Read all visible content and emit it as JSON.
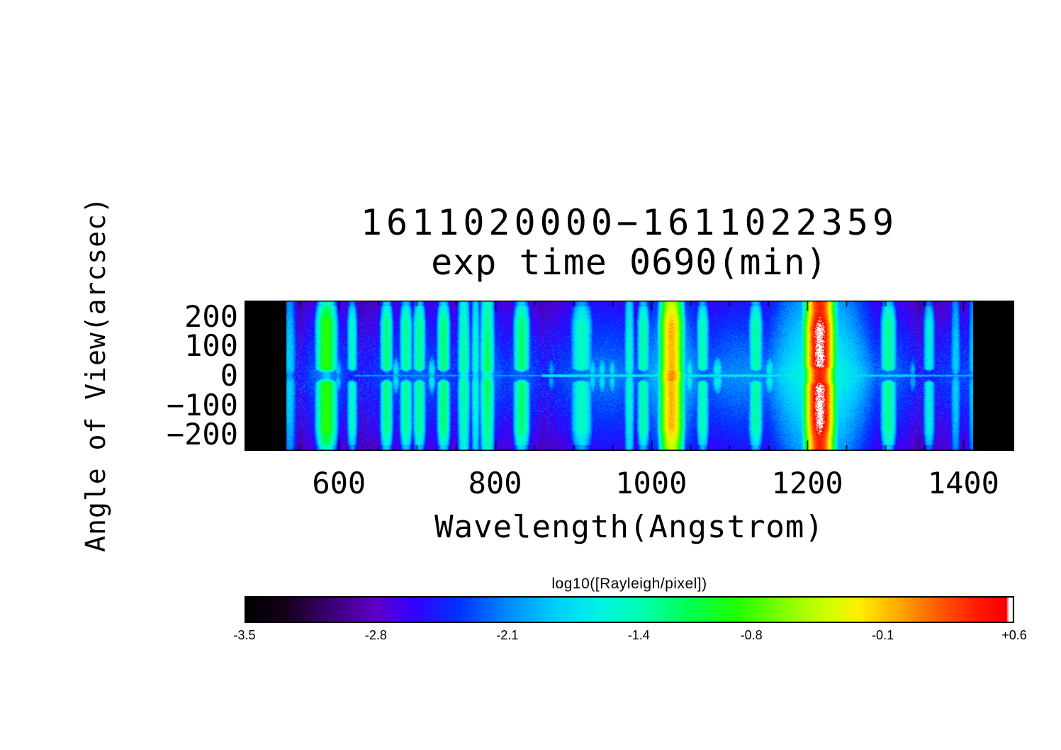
{
  "colors": {
    "background": "#ffffff",
    "text": "#000000",
    "axis": "#000000"
  },
  "chart_data": {
    "type": "heatmap",
    "title": "1611020000−1611022359",
    "subtitle": "exp time 0690(min)",
    "xlabel": "Wavelength(Angstrom)",
    "ylabel": "Angle of View(arcsec)",
    "xlim": [
      479,
      1465
    ],
    "ylim": [
      -255,
      255
    ],
    "x_ticks": {
      "values": [
        600,
        800,
        1000,
        1200,
        1400
      ],
      "labels": [
        "600",
        "800",
        "1000",
        "1200",
        "1400"
      ],
      "minor_step": 50
    },
    "y_ticks": {
      "values": [
        200,
        100,
        0,
        -100,
        -200
      ],
      "labels": [
        "200",
        "100",
        "0",
        "−100",
        "−200"
      ],
      "minor_step": 25
    },
    "colorbar": {
      "label": "log10([Rayleigh/pixel])",
      "range": [
        -3.5,
        0.6
      ],
      "tick_values": [
        -3.5,
        -2.8,
        -2.1,
        -1.4,
        -0.8,
        -0.1,
        0.6
      ],
      "tick_labels": [
        "-3.5",
        "-2.8",
        "-2.1",
        "-1.4",
        "-0.8",
        "-0.1",
        "+0.6"
      ],
      "colormap_stops": [
        [
          0.0,
          "#000000"
        ],
        [
          0.055,
          "#16001e"
        ],
        [
          0.11,
          "#3a0070"
        ],
        [
          0.17,
          "#5f00c8"
        ],
        [
          0.22,
          "#3300ff"
        ],
        [
          0.28,
          "#0033ff"
        ],
        [
          0.34,
          "#0088ff"
        ],
        [
          0.4,
          "#00ccff"
        ],
        [
          0.46,
          "#00f2e4"
        ],
        [
          0.52,
          "#00ffab"
        ],
        [
          0.58,
          "#00ff4d"
        ],
        [
          0.64,
          "#1fff00"
        ],
        [
          0.7,
          "#80ff00"
        ],
        [
          0.76,
          "#d4ff00"
        ],
        [
          0.8,
          "#ffee00"
        ],
        [
          0.85,
          "#ffaa00"
        ],
        [
          0.9,
          "#ff5e00"
        ],
        [
          0.95,
          "#ff1e00"
        ],
        [
          0.99,
          "#f30000"
        ],
        [
          0.994,
          "#ffffff"
        ],
        [
          1.0,
          "#ffffff"
        ]
      ]
    },
    "data_region_angstrom": [
      533,
      1412
    ],
    "background_log10_rayleigh": -2.55,
    "noise_log10": 0.4,
    "emission_lines": [
      {
        "wavelength": 537,
        "sigma": 5,
        "peak": -1.8,
        "profile": "full"
      },
      {
        "wavelength": 584,
        "sigma": 6,
        "peak": -0.85,
        "profile": "split"
      },
      {
        "wavelength": 599,
        "sigma": 3,
        "peak": -1.75,
        "profile": "short"
      },
      {
        "wavelength": 617,
        "sigma": 3.5,
        "peak": -1.5,
        "profile": "split"
      },
      {
        "wavelength": 661,
        "sigma": 4,
        "peak": -1.25,
        "profile": "split"
      },
      {
        "wavelength": 673,
        "sigma": 3,
        "peak": -1.6,
        "profile": "short"
      },
      {
        "wavelength": 686,
        "sigma": 4,
        "peak": -1.3,
        "profile": "split"
      },
      {
        "wavelength": 703,
        "sigma": 4,
        "peak": -1.3,
        "profile": "split"
      },
      {
        "wavelength": 719,
        "sigma": 3,
        "peak": -1.55,
        "profile": "short"
      },
      {
        "wavelength": 734,
        "sigma": 4,
        "peak": -1.2,
        "profile": "split"
      },
      {
        "wavelength": 760,
        "sigma": 4,
        "peak": -1.3,
        "profile": "full"
      },
      {
        "wavelength": 775,
        "sigma": 3,
        "peak": -1.5,
        "profile": "full"
      },
      {
        "wavelength": 790,
        "sigma": 4.5,
        "peak": -1.15,
        "profile": "full"
      },
      {
        "wavelength": 834,
        "sigma": 5,
        "peak": -1.2,
        "profile": "split"
      },
      {
        "wavelength": 872,
        "sigma": 3,
        "peak": -1.9,
        "profile": "short"
      },
      {
        "wavelength": 911,
        "sigma": 7,
        "peak": -1.45,
        "profile": "split"
      },
      {
        "wavelength": 925,
        "sigma": 3,
        "peak": -1.65,
        "profile": "short"
      },
      {
        "wavelength": 937,
        "sigma": 3,
        "peak": -1.6,
        "profile": "short"
      },
      {
        "wavelength": 950,
        "sigma": 3,
        "peak": -1.65,
        "profile": "short"
      },
      {
        "wavelength": 972,
        "sigma": 3.5,
        "peak": -1.5,
        "profile": "full"
      },
      {
        "wavelength": 990,
        "sigma": 4,
        "peak": -1.35,
        "profile": "split"
      },
      {
        "wavelength": 1026,
        "sigma": 6,
        "peak": -0.05,
        "profile": "lyman-beta"
      },
      {
        "wavelength": 1049,
        "sigma": 3,
        "peak": -1.5,
        "profile": "short"
      },
      {
        "wavelength": 1066,
        "sigma": 4,
        "peak": -1.4,
        "profile": "split"
      },
      {
        "wavelength": 1085,
        "sigma": 4,
        "peak": -1.5,
        "profile": "short"
      },
      {
        "wavelength": 1134,
        "sigma": 4.5,
        "peak": -1.35,
        "profile": "split"
      },
      {
        "wavelength": 1152,
        "sigma": 3.5,
        "peak": -1.5,
        "profile": "short"
      },
      {
        "wavelength": 1168,
        "sigma": 3,
        "peak": -1.65,
        "profile": "short"
      },
      {
        "wavelength": 1200,
        "sigma": 4,
        "peak": -1.05,
        "profile": "split"
      },
      {
        "wavelength": 1216,
        "sigma": 7,
        "peak": 0.5,
        "profile": "lyman-alpha"
      },
      {
        "wavelength": 1243,
        "sigma": 3.5,
        "peak": -1.55,
        "profile": "short"
      },
      {
        "wavelength": 1261,
        "sigma": 3,
        "peak": -1.6,
        "profile": "short"
      },
      {
        "wavelength": 1304,
        "sigma": 5,
        "peak": -1.3,
        "profile": "split"
      },
      {
        "wavelength": 1335,
        "sigma": 3,
        "peak": -1.85,
        "profile": "short"
      },
      {
        "wavelength": 1356,
        "sigma": 4,
        "peak": -1.6,
        "profile": "split"
      },
      {
        "wavelength": 1390,
        "sigma": 4,
        "peak": -1.8,
        "profile": "full"
      },
      {
        "wavelength": 1411,
        "sigma": 3,
        "peak": -1.85,
        "profile": "full"
      }
    ],
    "halos": [
      {
        "wavelength": 584,
        "sigma": 22,
        "amp": -2.1
      },
      {
        "wavelength": 700,
        "sigma": 55,
        "amp": -2.2
      },
      {
        "wavelength": 790,
        "sigma": 25,
        "amp": -2.15
      },
      {
        "wavelength": 834,
        "sigma": 22,
        "amp": -2.2
      },
      {
        "wavelength": 940,
        "sigma": 55,
        "amp": -2.1
      },
      {
        "wavelength": 1026,
        "sigma": 28,
        "amp": -1.8
      },
      {
        "wavelength": 1120,
        "sigma": 60,
        "amp": -2.05
      },
      {
        "wavelength": 1216,
        "sigma": 40,
        "amp": -1.5
      },
      {
        "wavelength": 1260,
        "sigma": 30,
        "amp": -2.0
      },
      {
        "wavelength": 1304,
        "sigma": 28,
        "amp": -2.15
      },
      {
        "wavelength": 1400,
        "sigma": 40,
        "amp": -2.3
      }
    ],
    "center_line_segments": [
      {
        "from": 620,
        "to": 860,
        "level": -2.0
      },
      {
        "from": 860,
        "to": 1208,
        "level": -1.55
      },
      {
        "from": 1224,
        "to": 1340,
        "level": -1.7
      },
      {
        "from": 1340,
        "to": 1455,
        "level": -1.9
      }
    ]
  }
}
